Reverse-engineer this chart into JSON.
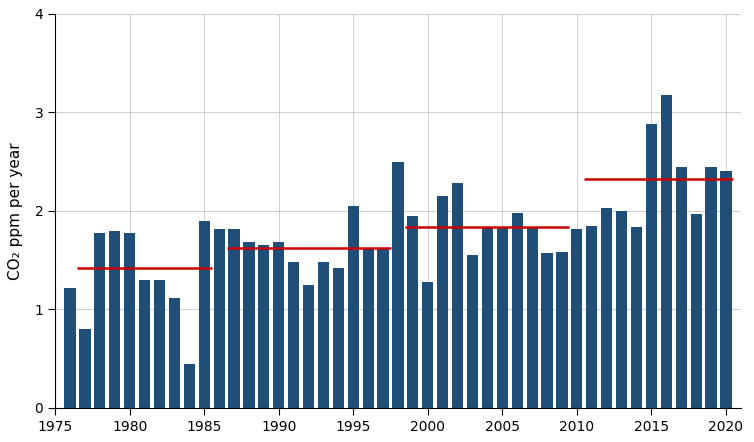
{
  "years": [
    1976,
    1977,
    1978,
    1979,
    1980,
    1981,
    1982,
    1983,
    1984,
    1985,
    1986,
    1987,
    1988,
    1989,
    1990,
    1991,
    1992,
    1993,
    1994,
    1995,
    1996,
    1997,
    1998,
    1999,
    2000,
    2001,
    2002,
    2003,
    2004,
    2005,
    2006,
    2007,
    2008,
    2009,
    2010,
    2011,
    2012,
    2013,
    2014,
    2015,
    2016,
    2017,
    2018,
    2019,
    2020
  ],
  "values": [
    1.22,
    0.8,
    1.78,
    1.8,
    1.78,
    1.3,
    1.3,
    1.12,
    0.45,
    1.9,
    1.82,
    1.82,
    1.68,
    1.65,
    1.68,
    1.48,
    1.25,
    1.48,
    1.42,
    2.05,
    1.62,
    1.62,
    2.5,
    1.95,
    1.28,
    2.15,
    2.28,
    1.55,
    1.83,
    1.84,
    1.98,
    1.84,
    1.57,
    1.58,
    1.82,
    1.85,
    2.03,
    2.0,
    1.84,
    2.88,
    3.18,
    2.45,
    1.97,
    2.45,
    2.4
  ],
  "bar_color": "#1f4e79",
  "decade_lines": [
    {
      "x_start": 1976.5,
      "x_end": 1985.5,
      "y": 1.42
    },
    {
      "x_start": 1986.5,
      "x_end": 1997.5,
      "y": 1.62
    },
    {
      "x_start": 1998.5,
      "x_end": 2009.5,
      "y": 1.84
    },
    {
      "x_start": 2010.5,
      "x_end": 2020.5,
      "y": 2.32
    }
  ],
  "line_color": "#cc0000",
  "ylabel": "CO₂ ppm per year",
  "xlim": [
    1975.0,
    2021.0
  ],
  "ylim": [
    0,
    4
  ],
  "yticks": [
    0,
    1,
    2,
    3,
    4
  ],
  "xticks": [
    1975,
    1980,
    1985,
    1990,
    1995,
    2000,
    2005,
    2010,
    2015,
    2020
  ],
  "grid_color": "#bbbbbb",
  "background_color": "#ffffff",
  "fig_width": 7.54,
  "fig_height": 4.42,
  "dpi": 100
}
